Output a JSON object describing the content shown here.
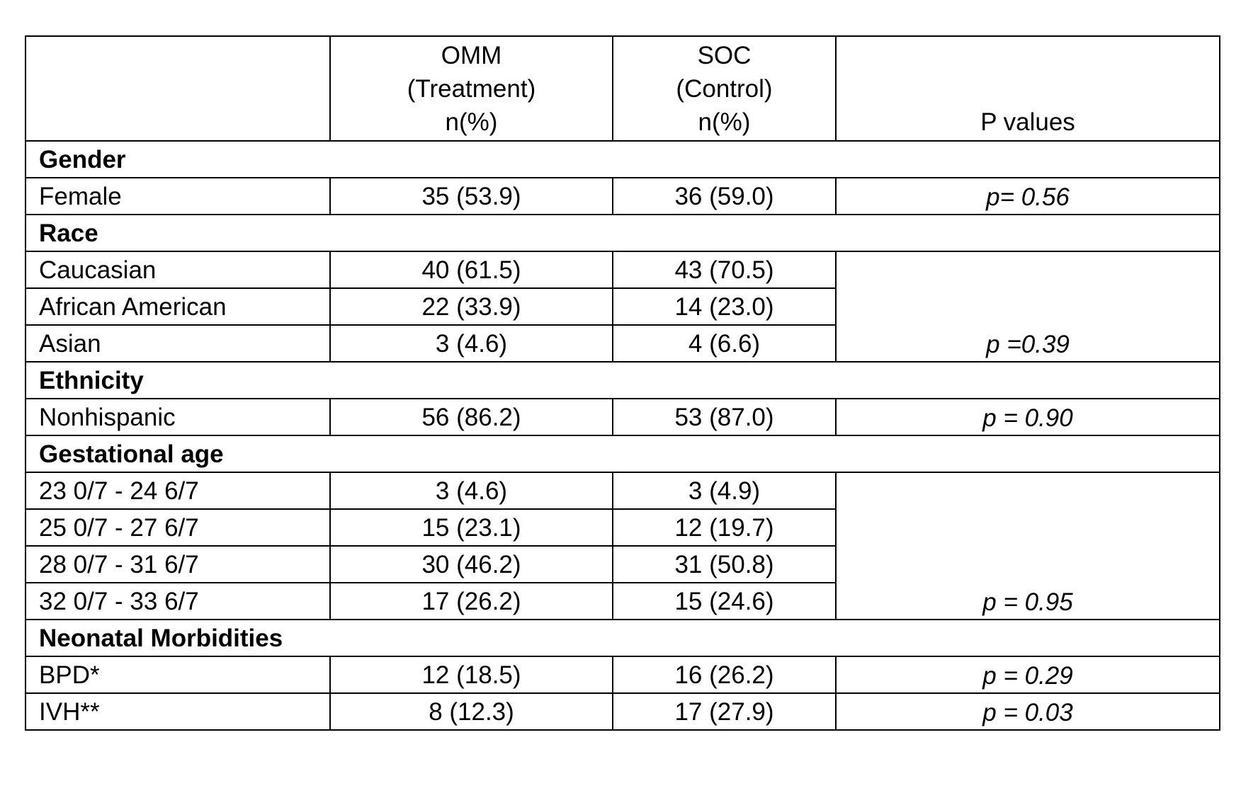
{
  "header": {
    "omm": [
      "OMM",
      "(Treatment)",
      "n(%)"
    ],
    "soc": [
      "SOC",
      "(Control)",
      "n(%)"
    ],
    "p": "P values"
  },
  "sections": [
    {
      "title": "Gender",
      "rows": [
        {
          "label": "Female",
          "omm": "35 (53.9)",
          "soc": "36 (59.0)"
        }
      ],
      "p": "p= 0.56"
    },
    {
      "title": "Race",
      "rows": [
        {
          "label": "Caucasian",
          "omm": "40 (61.5)",
          "soc": "43 (70.5)"
        },
        {
          "label": "African American",
          "omm": "22 (33.9)",
          "soc": "14 (23.0)"
        },
        {
          "label": "Asian",
          "omm": "3 (4.6)",
          "soc": "4 (6.6)"
        }
      ],
      "p": "p =0.39"
    },
    {
      "title": "Ethnicity",
      "rows": [
        {
          "label": "Nonhispanic",
          "omm": "56 (86.2)",
          "soc": "53 (87.0)"
        }
      ],
      "p": "p = 0.90"
    },
    {
      "title": "Gestational age",
      "rows": [
        {
          "label": "23 0/7 - 24 6/7",
          "omm": "3 (4.6)",
          "soc": "3 (4.9)"
        },
        {
          "label": "25 0/7 - 27 6/7",
          "omm": "15 (23.1)",
          "soc": "12 (19.7)"
        },
        {
          "label": "28 0/7 - 31 6/7",
          "omm": "30 (46.2)",
          "soc": "31 (50.8)"
        },
        {
          "label": "32 0/7 - 33 6/7",
          "omm": "17 (26.2)",
          "soc": "15 (24.6)"
        }
      ],
      "p": "p = 0.95"
    },
    {
      "title": "Neonatal Morbidities",
      "rows": [
        {
          "label": "BPD*",
          "omm": "12 (18.5)",
          "soc": "16 (26.2)",
          "p": "p = 0.29"
        },
        {
          "label": "IVH**",
          "omm": "8 (12.3)",
          "soc": "17 (27.9)",
          "p": "p = 0.03"
        }
      ]
    }
  ]
}
